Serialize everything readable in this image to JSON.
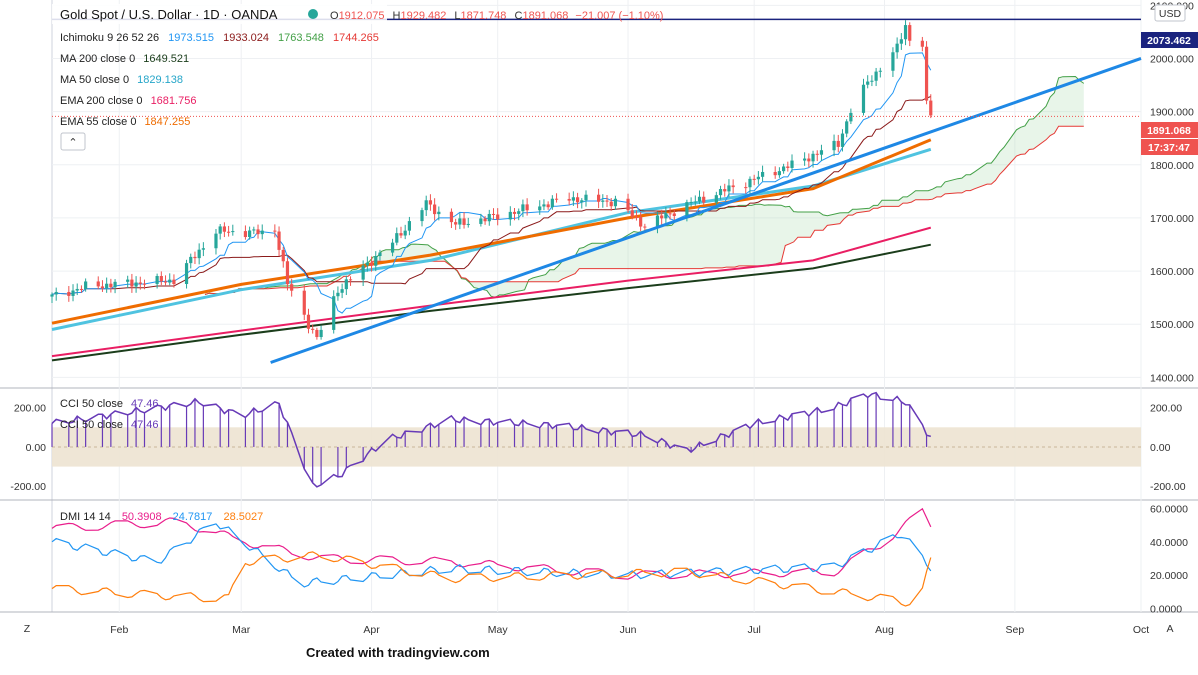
{
  "header": {
    "title": "Gold Spot / U.S. Dollar · 1D · OANDA",
    "o_label": "O",
    "o": "1912.075",
    "h_label": "H",
    "h": "1929.482",
    "l_label": "L",
    "l": "1871.748",
    "c_label": "C",
    "c": "1891.068",
    "chg": "−21.007 (−1.10%)",
    "currency": "USD"
  },
  "indicators": {
    "ichimoku": {
      "label": "Ichimoku 9 26 52 26",
      "v1": "1973.515",
      "v2": "1933.024",
      "v3": "1763.548",
      "v4": "1744.265"
    },
    "ma200": {
      "label": "MA 200 close 0",
      "value": "1649.521"
    },
    "ma50": {
      "label": "MA 50 close 0",
      "value": "1829.138"
    },
    "ema200": {
      "label": "EMA 200 close 0",
      "value": "1681.756"
    },
    "ema55": {
      "label": "EMA 55 close 0",
      "value": "1847.255"
    },
    "cci_a": {
      "label": "CCI 50 close",
      "value": "47.46"
    },
    "cci_b": {
      "label": "CCI 50 close",
      "value": "47.46"
    },
    "dmi": {
      "label": "DMI 14 14",
      "v1": "50.3908",
      "v2": "24.7817",
      "v3": "28.5027"
    }
  },
  "price_tags": {
    "high_line": "2073.462",
    "last": "1891.068",
    "countdown": "17:37:47"
  },
  "axis": {
    "price_ticks": [
      "2100.000",
      "2000.000",
      "1900.000",
      "1800.000",
      "1700.000",
      "1600.000",
      "1500.000",
      "1400.000"
    ],
    "cci_ticks": [
      "200.00",
      "0.00",
      "-200.00"
    ],
    "dmi_ticks": [
      "60.0000",
      "40.0000",
      "20.0000",
      "0.0000"
    ],
    "months": [
      "Feb",
      "Mar",
      "Apr",
      "May",
      "Jun",
      "Jul",
      "Aug",
      "Sep",
      "Oct"
    ],
    "z_btn": "Z",
    "a_btn": "A"
  },
  "colors": {
    "ichimoku": "#2196f3",
    "ichimoku_base": "#8b1a1a",
    "ma200": "#1b3d1b",
    "ma50": "#4fc3e0",
    "ema200": "#e91e63",
    "ema55": "#ef6c00",
    "cci": "#673ab7",
    "dmi_plus": "#e91e8c",
    "dmi_minus": "#2196f3",
    "adx": "#ff7f0e",
    "up": "#26a69a",
    "down": "#ef5350",
    "trend": "#1e88e5"
  },
  "chart_data": {
    "type": "candlestick",
    "title": "Gold Spot / U.S. Dollar · 1D · OANDA",
    "x_range": [
      "2020-01-16",
      "2020-10-01"
    ],
    "y_range": [
      1380,
      2110
    ],
    "close_path": [
      [
        "2020-01-16",
        1552
      ],
      [
        "2020-01-24",
        1571
      ],
      [
        "2020-02-03",
        1577
      ],
      [
        "2020-02-14",
        1583
      ],
      [
        "2020-02-24",
        1675
      ],
      [
        "2020-03-06",
        1672
      ],
      [
        "2020-03-09",
        1680
      ],
      [
        "2020-03-12",
        1576
      ],
      [
        "2020-03-16",
        1516
      ],
      [
        "2020-03-19",
        1472
      ],
      [
        "2020-03-24",
        1565
      ],
      [
        "2020-04-06",
        1654
      ],
      [
        "2020-04-14",
        1727
      ],
      [
        "2020-04-21",
        1688
      ],
      [
        "2020-04-30",
        1702
      ],
      [
        "2020-05-18",
        1737
      ],
      [
        "2020-05-29",
        1730
      ],
      [
        "2020-06-05",
        1685
      ],
      [
        "2020-06-15",
        1725
      ],
      [
        "2020-06-30",
        1770
      ],
      [
        "2020-07-10",
        1800
      ],
      [
        "2020-07-21",
        1840
      ],
      [
        "2020-07-24",
        1902
      ],
      [
        "2020-07-28",
        1955
      ],
      [
        "2020-08-04",
        2019
      ],
      [
        "2020-08-06",
        2063
      ],
      [
        "2020-08-07",
        2035
      ],
      [
        "2020-08-10",
        2028
      ],
      [
        "2020-08-11",
        1912
      ],
      [
        "2020-08-12",
        1891
      ]
    ],
    "ma200": [
      [
        "2020-01-16",
        1432
      ],
      [
        "2020-03-01",
        1480
      ],
      [
        "2020-04-15",
        1525
      ],
      [
        "2020-06-01",
        1568
      ],
      [
        "2020-07-15",
        1605
      ],
      [
        "2020-08-12",
        1649.521
      ]
    ],
    "ma50": [
      [
        "2020-01-16",
        1490
      ],
      [
        "2020-03-01",
        1565
      ],
      [
        "2020-04-15",
        1620
      ],
      [
        "2020-06-01",
        1710
      ],
      [
        "2020-07-15",
        1760
      ],
      [
        "2020-08-12",
        1829.138
      ]
    ],
    "ema200": [
      [
        "2020-01-16",
        1440
      ],
      [
        "2020-03-01",
        1488
      ],
      [
        "2020-04-15",
        1535
      ],
      [
        "2020-06-01",
        1582
      ],
      [
        "2020-07-15",
        1620
      ],
      [
        "2020-08-12",
        1681.756
      ]
    ],
    "ema55": [
      [
        "2020-01-16",
        1502
      ],
      [
        "2020-03-01",
        1575
      ],
      [
        "2020-04-15",
        1630
      ],
      [
        "2020-06-01",
        1700
      ],
      [
        "2020-07-15",
        1755
      ],
      [
        "2020-08-12",
        1847.255
      ]
    ],
    "trendline": [
      [
        "2020-03-08",
        1428
      ],
      [
        "2020-10-01",
        2000
      ]
    ],
    "cci": [
      [
        "2020-01-16",
        120
      ],
      [
        "2020-02-20",
        230
      ],
      [
        "2020-03-01",
        160
      ],
      [
        "2020-03-10",
        220
      ],
      [
        "2020-03-18",
        -200
      ],
      [
        "2020-03-24",
        -150
      ],
      [
        "2020-04-05",
        40
      ],
      [
        "2020-04-20",
        140
      ],
      [
        "2020-05-15",
        110
      ],
      [
        "2020-06-05",
        60
      ],
      [
        "2020-06-15",
        -20
      ],
      [
        "2020-07-01",
        120
      ],
      [
        "2020-07-20",
        200
      ],
      [
        "2020-07-28",
        270
      ],
      [
        "2020-08-06",
        230
      ],
      [
        "2020-08-12",
        47.46
      ]
    ],
    "dmi_plus": [
      [
        "2020-01-16",
        48
      ],
      [
        "2020-02-15",
        52
      ],
      [
        "2020-03-05",
        38
      ],
      [
        "2020-03-20",
        30
      ],
      [
        "2020-04-20",
        28
      ],
      [
        "2020-06-01",
        20
      ],
      [
        "2020-07-20",
        22
      ],
      [
        "2020-08-01",
        40
      ],
      [
        "2020-08-10",
        58
      ],
      [
        "2020-08-12",
        50.3908
      ]
    ],
    "dmi_minus": [
      [
        "2020-01-16",
        40
      ],
      [
        "2020-02-10",
        28
      ],
      [
        "2020-02-24",
        52
      ],
      [
        "2020-03-15",
        15
      ],
      [
        "2020-04-20",
        24
      ],
      [
        "2020-06-01",
        20
      ],
      [
        "2020-07-20",
        25
      ],
      [
        "2020-08-05",
        45
      ],
      [
        "2020-08-12",
        24.7817
      ]
    ],
    "adx": [
      [
        "2020-01-16",
        12
      ],
      [
        "2020-02-10",
        8
      ],
      [
        "2020-02-27",
        6
      ],
      [
        "2020-03-01",
        28
      ],
      [
        "2020-03-20",
        32
      ],
      [
        "2020-04-20",
        18
      ],
      [
        "2020-06-15",
        22
      ],
      [
        "2020-07-15",
        12
      ],
      [
        "2020-08-09",
        3
      ],
      [
        "2020-08-12",
        28.5027
      ]
    ]
  },
  "footer": {
    "credit": "Created with tradingview.com"
  }
}
